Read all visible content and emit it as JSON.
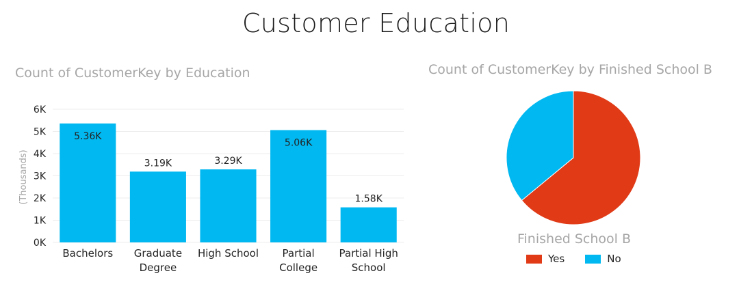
{
  "page": {
    "title": "Customer Education"
  },
  "chart_data": [
    {
      "type": "bar",
      "title": "Count of CustomerKey by Education",
      "ylabel": "(Thousands)",
      "xlabel": "",
      "categories": [
        "Bachelors",
        "Graduate Degree",
        "High School",
        "Partial College",
        "Partial High School"
      ],
      "category_lines": [
        [
          "Bachelors"
        ],
        [
          "Graduate",
          "Degree"
        ],
        [
          "High School"
        ],
        [
          "Partial",
          "College"
        ],
        [
          "Partial High",
          "School"
        ]
      ],
      "values": [
        5360,
        3190,
        3290,
        5060,
        1580
      ],
      "data_labels": [
        "5.36K",
        "3.19K",
        "3.29K",
        "5.06K",
        "1.58K"
      ],
      "ylim": [
        0,
        6000
      ],
      "yticks": [
        0,
        1000,
        2000,
        3000,
        4000,
        5000,
        6000
      ],
      "ytick_labels": [
        "0K",
        "1K",
        "2K",
        "3K",
        "4K",
        "5K",
        "6K"
      ],
      "color": "#01b8f0",
      "grid": true
    },
    {
      "type": "pie",
      "title": "Count of CustomerKey by Finished School B",
      "legend_title": "Finished School B",
      "legend_position": "bottom",
      "slices": [
        {
          "label": "Yes",
          "value": 0.64,
          "color": "#e03a17"
        },
        {
          "label": "No",
          "value": 0.36,
          "color": "#01b8f0"
        }
      ]
    }
  ]
}
